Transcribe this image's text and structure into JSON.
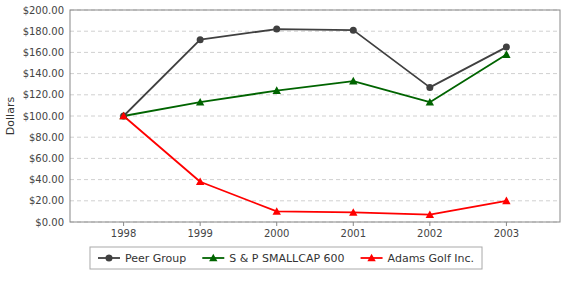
{
  "chart_data": {
    "type": "line",
    "ylabel": "Dollars",
    "x": [
      1998,
      1999,
      2000,
      2001,
      2002,
      2003
    ],
    "xlim": [
      1997.3,
      2003.7
    ],
    "xticks": [
      1998,
      1999,
      2000,
      2001,
      2002,
      2003
    ],
    "ylim": [
      0,
      200
    ],
    "yticks": [
      {
        "value": 0,
        "label": "$0.00"
      },
      {
        "value": 20,
        "label": "$20.00"
      },
      {
        "value": 40,
        "label": "$40.00"
      },
      {
        "value": 60,
        "label": "$60.00"
      },
      {
        "value": 80,
        "label": "$80.00"
      },
      {
        "value": 100,
        "label": "$100.00"
      },
      {
        "value": 120,
        "label": "$120.00"
      },
      {
        "value": 140,
        "label": "$140.00"
      },
      {
        "value": 160,
        "label": "$160.00"
      },
      {
        "value": 180,
        "label": "$180.00"
      },
      {
        "value": 200,
        "label": "$200.00"
      }
    ],
    "grid": true,
    "legend": "bottom",
    "series": [
      {
        "name": "Peer Group",
        "color": "#404040",
        "marker": "circle",
        "values": [
          100,
          172,
          182,
          181,
          127,
          165
        ]
      },
      {
        "name": "S & P SMALLCAP 600",
        "color": "#006400",
        "marker": "triangle",
        "values": [
          100,
          113,
          124,
          133,
          113,
          158
        ]
      },
      {
        "name": "Adams Golf Inc.",
        "color": "#ff0000",
        "marker": "triangle",
        "values": [
          100,
          38,
          10,
          9,
          7,
          20
        ]
      }
    ]
  }
}
